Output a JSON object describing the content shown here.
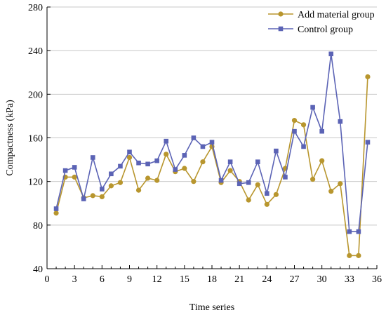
{
  "chart_data": {
    "type": "line",
    "title": "",
    "xlabel": "Time series",
    "ylabel": "Compactness (kPa)",
    "xlim": [
      0,
      36
    ],
    "ylim": [
      40,
      280
    ],
    "x_ticks": [
      0,
      3,
      6,
      9,
      12,
      15,
      18,
      21,
      24,
      27,
      30,
      33,
      36
    ],
    "y_ticks": [
      40,
      80,
      120,
      160,
      200,
      240,
      280
    ],
    "grid": "horizontal",
    "legend_position": "top-right",
    "x": [
      1,
      2,
      3,
      4,
      5,
      6,
      7,
      8,
      9,
      10,
      11,
      12,
      13,
      14,
      15,
      16,
      17,
      18,
      19,
      20,
      21,
      22,
      23,
      24,
      25,
      26,
      27,
      28,
      29,
      30,
      31,
      32,
      33,
      34,
      35
    ],
    "series": [
      {
        "name": "Add material group",
        "color": "#b8962e",
        "marker": "circle",
        "values": [
          91,
          124,
          124,
          105,
          107,
          106,
          116,
          119,
          142,
          112,
          123,
          121,
          145,
          129,
          132,
          120,
          138,
          152,
          119,
          130,
          120,
          103,
          117,
          99,
          108,
          132,
          176,
          172,
          122,
          139,
          111,
          118,
          52,
          52,
          216
        ]
      },
      {
        "name": "Control group",
        "color": "#5b63b5",
        "marker": "square",
        "values": [
          95,
          130,
          133,
          104,
          142,
          113,
          127,
          134,
          147,
          137,
          136,
          139,
          157,
          131,
          144,
          160,
          152,
          156,
          121,
          138,
          118,
          119,
          138,
          109,
          148,
          124,
          166,
          152,
          188,
          166,
          237,
          175,
          74,
          74,
          156
        ]
      }
    ]
  }
}
